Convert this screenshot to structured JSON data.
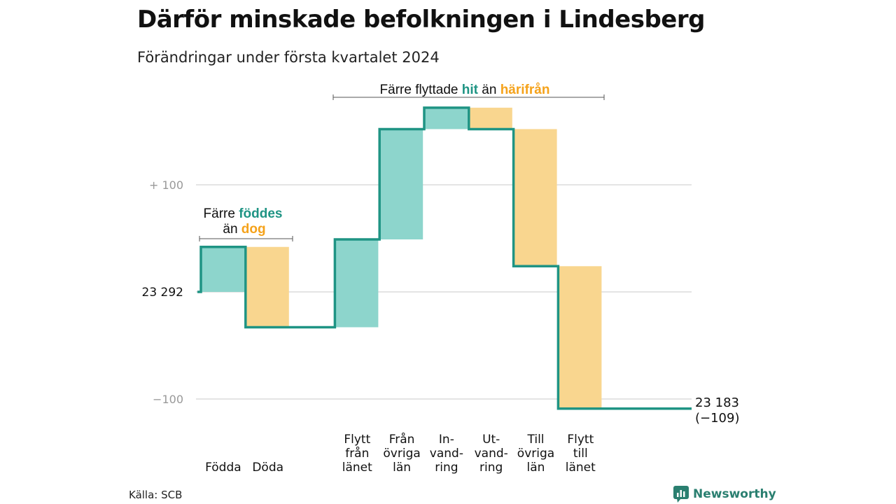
{
  "title": "Därför minskade befolkningen i Lindesberg",
  "subtitle": "Förändringar under första kvartalet 2024",
  "source": "Källa: SCB",
  "brand": "Newsworthy",
  "colors": {
    "increase": "#8dd5cc",
    "decrease": "#f9d68f",
    "line": "#1f9484",
    "teal_text": "#1f9484",
    "orange_text": "#f5a21a",
    "grid": "#dcdcdc"
  },
  "chart_data": {
    "type": "waterfall",
    "start_label": "23 292",
    "end_label": "23 183",
    "end_change_label": "(−109)",
    "y_ticks": [
      {
        "value": 100,
        "label": "+ 100"
      },
      {
        "value": 0,
        "label": "23 292"
      },
      {
        "value": -100,
        "label": "−100"
      }
    ],
    "ylim": [
      -110,
      175
    ],
    "steps": [
      {
        "lines": [
          "Födda"
        ],
        "from": 0,
        "to": 42
      },
      {
        "lines": [
          "Döda"
        ],
        "from": 42,
        "to": -33
      },
      {
        "lines": [],
        "from": -33,
        "to": -33
      },
      {
        "lines": [
          "Flytt",
          "från",
          "länet"
        ],
        "from": -33,
        "to": 49
      },
      {
        "lines": [
          "Från",
          "övriga",
          "län"
        ],
        "from": 49,
        "to": 152
      },
      {
        "lines": [
          "In-",
          "vand-",
          "ring"
        ],
        "from": 152,
        "to": 172
      },
      {
        "lines": [
          "Ut-",
          "vand-",
          "ring"
        ],
        "from": 172,
        "to": 152
      },
      {
        "lines": [
          "Till",
          "övriga",
          "län"
        ],
        "from": 152,
        "to": 24
      },
      {
        "lines": [
          "Flytt",
          "till",
          "länet"
        ],
        "from": 24,
        "to": -109
      }
    ],
    "annotations": [
      {
        "id": "births",
        "line1_prefix": "Färre ",
        "line1_highlight": "föddes",
        "line2_prefix": "än ",
        "line2_highlight": "dog"
      },
      {
        "id": "migration",
        "prefix": "Färre flyttade ",
        "highlight1": "hit",
        "middle": " än ",
        "highlight2": "härifrån"
      }
    ]
  }
}
